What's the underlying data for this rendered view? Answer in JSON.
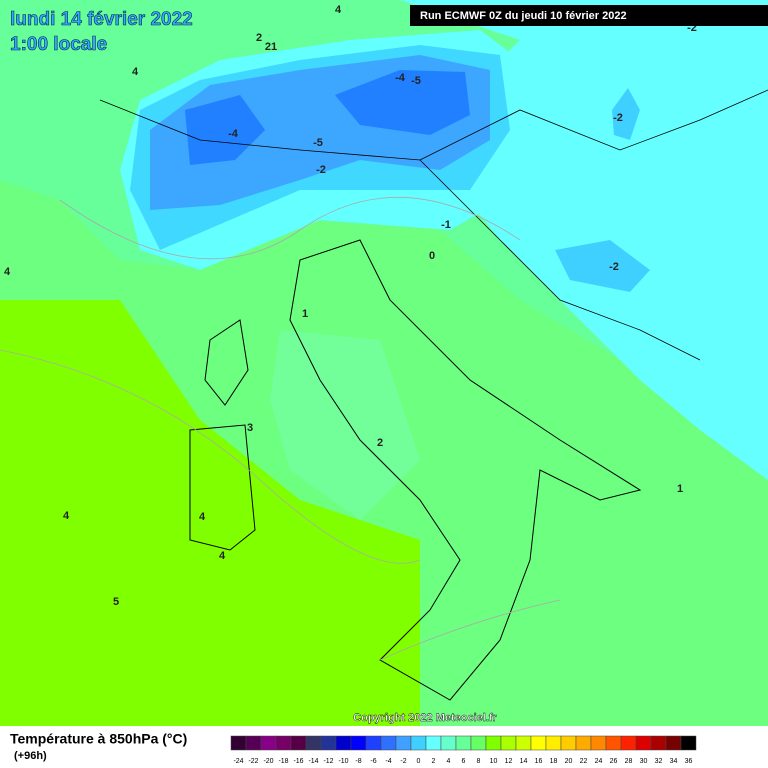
{
  "header": {
    "title": "lundi 14 février 2022",
    "subtitle": "1:00 locale",
    "run": "Run ECMWF 0Z du jeudi 10 février 2022"
  },
  "map": {
    "labels": [
      4,
      2,
      21,
      4,
      -4,
      -5,
      -2,
      -4,
      -5,
      -2,
      -2,
      -1,
      0,
      -2,
      4,
      1,
      3,
      2,
      1,
      4,
      4,
      4,
      5
    ],
    "copyright": "Copyright 2022 Meteociel.fr"
  },
  "legend": {
    "title": "Température à 850hPa (°C)",
    "subtitle": "(+96h)",
    "ticks": [
      -24,
      -22,
      -20,
      -18,
      -16,
      -14,
      -12,
      -10,
      -8,
      -6,
      -4,
      -2,
      0,
      2,
      4,
      6,
      8,
      10,
      12,
      14,
      16,
      18,
      20,
      22,
      24,
      26,
      28,
      30,
      32,
      34,
      36
    ],
    "colors": [
      "#330033",
      "#550055",
      "#880088",
      "#770066",
      "#550044",
      "#333366",
      "#223399",
      "#0000cc",
      "#0000ff",
      "#2040ff",
      "#3070ff",
      "#40a0ff",
      "#40d0ff",
      "#66ffff",
      "#66ffcc",
      "#66ff99",
      "#66ff66",
      "#80ff00",
      "#aaff00",
      "#ccff00",
      "#ffff00",
      "#ffee00",
      "#ffcc00",
      "#ffaa00",
      "#ff8800",
      "#ff5500",
      "#ff2200",
      "#dd0000",
      "#aa0000",
      "#770000",
      "#000000"
    ]
  }
}
